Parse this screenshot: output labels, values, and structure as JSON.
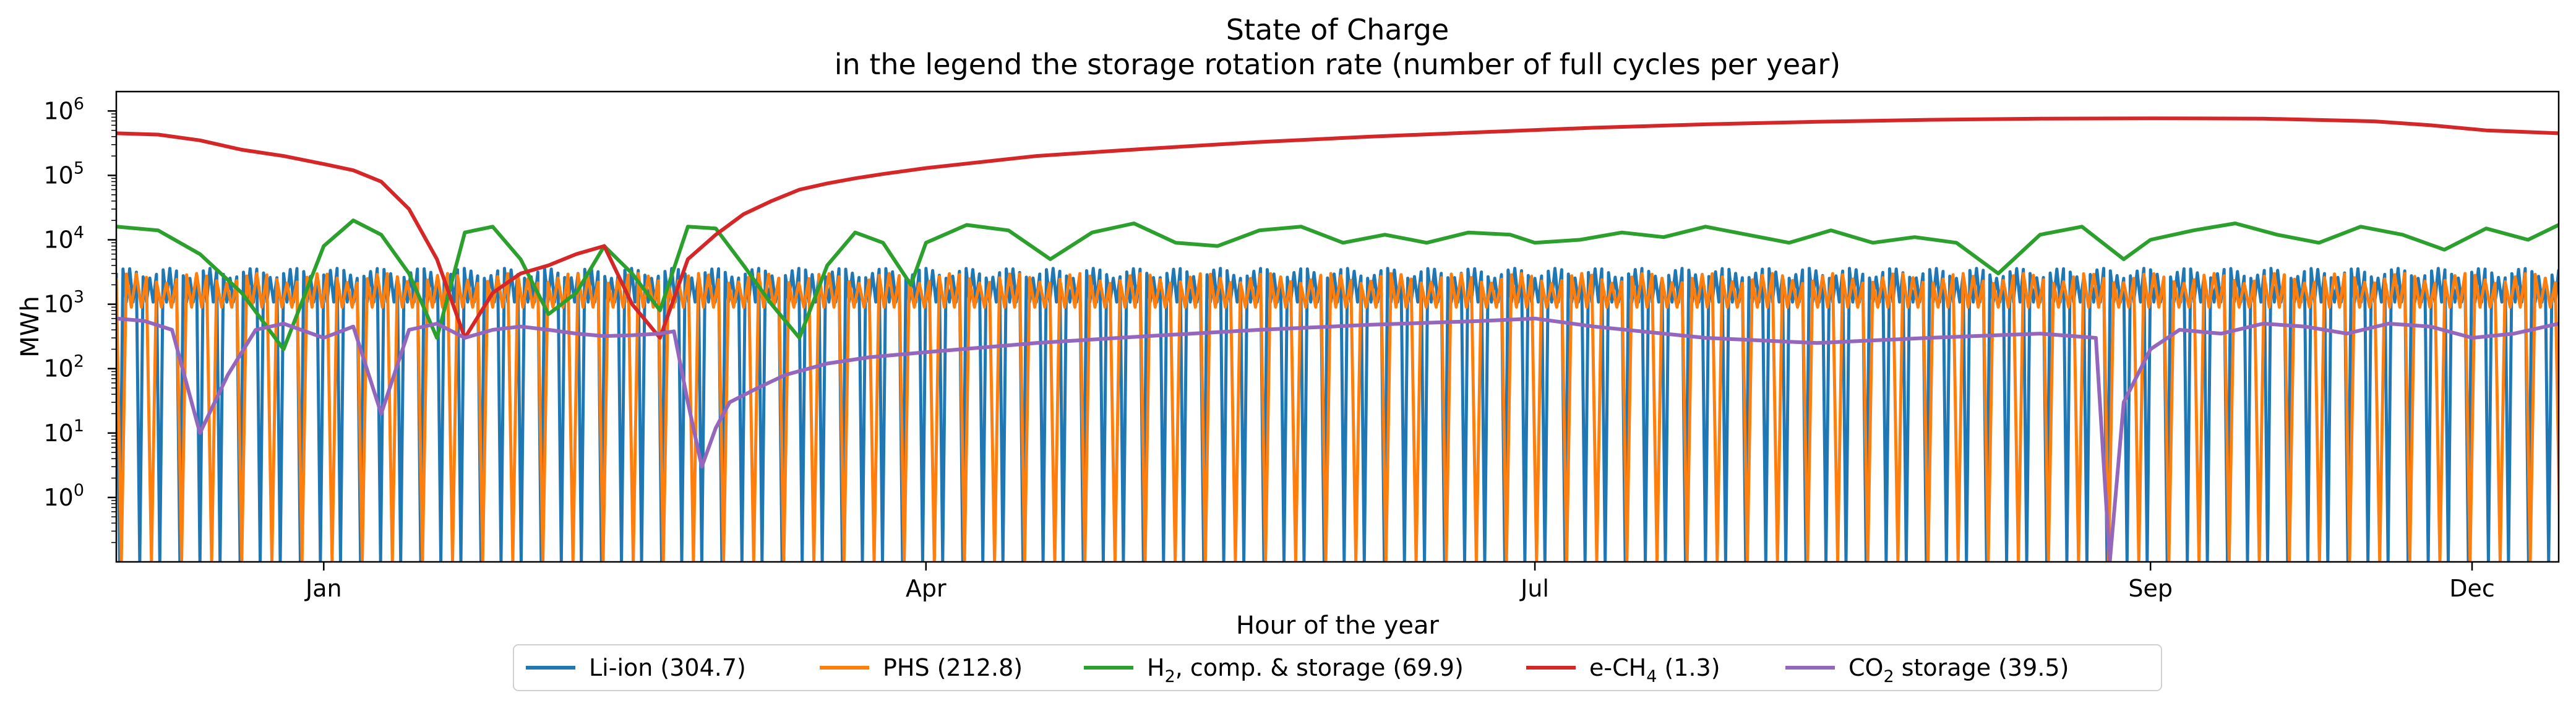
{
  "chart_data": {
    "type": "line",
    "title": "State of Charge",
    "subtitle": "in the legend the storage rotation rate (number of full cycles per year)",
    "xlabel": "Hour of the year",
    "ylabel": "MWh",
    "x_unit": "hour of year",
    "xlim": [
      0,
      8760
    ],
    "ylim": [
      0.1,
      2000000
    ],
    "yscale": "log",
    "x_ticks": [
      {
        "label": "Jan",
        "x": 744
      },
      {
        "label": "Apr",
        "x": 2904
      },
      {
        "label": "Jul",
        "x": 5088
      },
      {
        "label": "Sep",
        "x": 7296
      },
      {
        "label": "Dec",
        "x": 8760
      }
    ],
    "y_ticks": [
      {
        "base": "10",
        "exp": "0",
        "value": 1
      },
      {
        "base": "10",
        "exp": "1",
        "value": 10
      },
      {
        "base": "10",
        "exp": "2",
        "value": 100
      },
      {
        "base": "10",
        "exp": "3",
        "value": 1000
      },
      {
        "base": "10",
        "exp": "4",
        "value": 10000
      },
      {
        "base": "10",
        "exp": "5",
        "value": 100000
      },
      {
        "base": "10",
        "exp": "6",
        "value": 1000000
      }
    ],
    "grid": false,
    "legend_position": "bottom-center",
    "series": [
      {
        "name": "Li-ion (304.7)",
        "label_main": "Li-ion (304.7)",
        "label_sub": "",
        "label_tail": "",
        "color": "#1f77b4",
        "style": "cycling",
        "peak": 3600,
        "trough": 0.1,
        "cycle_hours": 24
      },
      {
        "name": "PHS (212.8)",
        "label_main": "PHS (212.8)",
        "label_sub": "",
        "label_tail": "",
        "color": "#ff7f0e",
        "style": "cycling",
        "peak": 3000,
        "trough": 0.1,
        "cycle_hours": 36
      },
      {
        "name": "H2, comp. & storage (69.9)",
        "label_main": "H",
        "label_sub": "2",
        "label_tail": ", comp. & storage (69.9)",
        "color": "#2ca02c",
        "style": "points",
        "x": [
          0,
          150,
          300,
          450,
          600,
          744,
          850,
          950,
          1050,
          1150,
          1250,
          1350,
          1450,
          1550,
          1650,
          1750,
          1850,
          1950,
          2050,
          2150,
          2250,
          2350,
          2450,
          2550,
          2650,
          2750,
          2850,
          2904,
          3050,
          3200,
          3350,
          3500,
          3650,
          3800,
          3950,
          4100,
          4250,
          4400,
          4550,
          4700,
          4850,
          5000,
          5088,
          5250,
          5400,
          5550,
          5700,
          5850,
          6000,
          6150,
          6300,
          6450,
          6600,
          6750,
          6900,
          7050,
          7200,
          7296,
          7450,
          7600,
          7750,
          7900,
          8050,
          8200,
          8350,
          8500,
          8650,
          8760
        ],
        "y": [
          16000,
          14000,
          6000,
          1500,
          200,
          8000,
          20000,
          12000,
          3000,
          300,
          13000,
          16000,
          5000,
          700,
          1500,
          8000,
          3000,
          800,
          16000,
          15000,
          4000,
          1000,
          300,
          4000,
          13000,
          9000,
          2000,
          9000,
          17000,
          14000,
          5000,
          13000,
          18000,
          9000,
          8000,
          14000,
          16000,
          9000,
          12000,
          9000,
          13000,
          12000,
          9000,
          10000,
          13000,
          11000,
          16000,
          12000,
          9000,
          14000,
          9000,
          11000,
          9000,
          3000,
          12000,
          16000,
          5000,
          10000,
          14000,
          18000,
          12000,
          9000,
          16000,
          12000,
          7000,
          15000,
          10000,
          17000
        ]
      },
      {
        "name": "e-CH4 (1.3)",
        "label_main": "e-CH",
        "label_sub": "4",
        "label_tail": " (1.3)",
        "color": "#d62728",
        "style": "points",
        "x": [
          0,
          150,
          300,
          450,
          600,
          744,
          850,
          950,
          1050,
          1150,
          1250,
          1350,
          1450,
          1550,
          1650,
          1750,
          1850,
          1950,
          2050,
          2150,
          2250,
          2350,
          2450,
          2550,
          2650,
          2750,
          2904,
          3300,
          3700,
          4100,
          4500,
          4900,
          5300,
          5700,
          6100,
          6500,
          6900,
          7300,
          7700,
          8100,
          8300,
          8500,
          8760
        ],
        "y": [
          450000,
          430000,
          350000,
          250000,
          200000,
          150000,
          120000,
          80000,
          30000,
          5000,
          300,
          1500,
          3000,
          4000,
          6000,
          8000,
          1000,
          300,
          5000,
          12000,
          25000,
          40000,
          60000,
          75000,
          90000,
          105000,
          130000,
          200000,
          260000,
          330000,
          400000,
          470000,
          550000,
          620000,
          680000,
          730000,
          760000,
          770000,
          760000,
          690000,
          600000,
          500000,
          450000
        ]
      },
      {
        "name": "CO2 storage (39.5)",
        "label_main": "CO",
        "label_sub": "2",
        "label_tail": " storage (39.5)",
        "color": "#9467bd",
        "style": "points",
        "x": [
          0,
          100,
          200,
          300,
          400,
          500,
          600,
          744,
          850,
          950,
          1050,
          1150,
          1250,
          1350,
          1450,
          1550,
          1650,
          1750,
          1850,
          1950,
          2000,
          2050,
          2100,
          2150,
          2200,
          2300,
          2400,
          2550,
          2700,
          2904,
          3300,
          3700,
          4100,
          4500,
          4900,
          5088,
          5300,
          5700,
          6100,
          6500,
          6900,
          7100,
          7150,
          7200,
          7296,
          7400,
          7550,
          7700,
          7850,
          8000,
          8150,
          8300,
          8450,
          8600,
          8760
        ],
        "y": [
          600,
          550,
          400,
          10,
          80,
          400,
          500,
          300,
          450,
          20,
          400,
          500,
          300,
          400,
          450,
          400,
          350,
          320,
          330,
          350,
          380,
          30,
          3,
          12,
          30,
          50,
          80,
          120,
          150,
          180,
          250,
          320,
          400,
          480,
          550,
          600,
          450,
          300,
          250,
          300,
          350,
          300,
          0.1,
          30,
          200,
          400,
          350,
          500,
          450,
          350,
          500,
          450,
          300,
          350,
          500
        ]
      }
    ]
  }
}
